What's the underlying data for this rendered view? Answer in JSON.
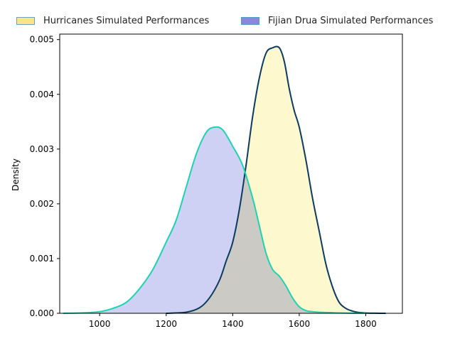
{
  "legend": {
    "placement": "top-center",
    "items": [
      {
        "label": "Hurricanes Simulated Performances",
        "fill": "#f8e58a",
        "edge": "#6ea2b4"
      },
      {
        "label": "Fijian Drua Simulated Performances",
        "fill": "#8c86de",
        "edge": "#44a6bc"
      }
    ]
  },
  "chart_data": {
    "type": "area",
    "title": "",
    "xlabel": "",
    "ylabel": "Density",
    "xlim": [
      880,
      1910
    ],
    "ylim": [
      0,
      0.0051
    ],
    "xticks": [
      1000,
      1200,
      1400,
      1600,
      1800
    ],
    "xtick_labels": [
      "1000",
      "1200",
      "1400",
      "1600",
      "1800"
    ],
    "yticks": [
      0,
      0.001,
      0.002,
      0.003,
      0.004,
      0.005
    ],
    "ytick_labels": [
      "0.000",
      "0.001",
      "0.002",
      "0.003",
      "0.004",
      "0.005"
    ],
    "grid": false,
    "series": [
      {
        "name": "Hurricanes Simulated Performances",
        "fill": "#fdf6c0",
        "line": "#0b3b63",
        "x": [
          1200,
          1260,
          1300,
          1330,
          1360,
          1380,
          1400,
          1420,
          1440,
          1460,
          1480,
          1500,
          1520,
          1540,
          1555,
          1570,
          1585,
          1600,
          1620,
          1640,
          1660,
          1680,
          1700,
          1720,
          1740,
          1760,
          1780,
          1800,
          1830,
          1860
        ],
        "y": [
          0.0,
          2e-05,
          0.0001,
          0.00028,
          0.0006,
          0.00095,
          0.0013,
          0.0019,
          0.0027,
          0.0036,
          0.0043,
          0.00475,
          0.00485,
          0.00485,
          0.0046,
          0.0041,
          0.0037,
          0.0034,
          0.0028,
          0.0021,
          0.0015,
          0.0009,
          0.00048,
          0.0002,
          9e-05,
          4e-05,
          1.5e-05,
          5e-06,
          1.5e-06,
          0.0
        ]
      },
      {
        "name": "Fijian Drua Simulated Performances",
        "fill": "#c2c4f1",
        "line": "#1dd4b0",
        "x": [
          890,
          950,
          1000,
          1040,
          1080,
          1120,
          1160,
          1200,
          1230,
          1260,
          1290,
          1320,
          1345,
          1370,
          1400,
          1430,
          1460,
          1480,
          1500,
          1520,
          1540,
          1560,
          1580,
          1600,
          1620,
          1640,
          1660,
          1680,
          1720,
          1760,
          1800
        ],
        "y": [
          0.0,
          8e-06,
          3e-05,
          9e-05,
          0.0002,
          0.00045,
          0.0008,
          0.0013,
          0.0017,
          0.0023,
          0.0029,
          0.0033,
          0.0034,
          0.00335,
          0.00305,
          0.0027,
          0.0021,
          0.0016,
          0.0011,
          0.0008,
          0.00068,
          0.0005,
          0.00028,
          0.00012,
          5e-05,
          3e-05,
          2e-05,
          1.5e-05,
          6e-06,
          2e-06,
          0.0
        ]
      }
    ]
  }
}
